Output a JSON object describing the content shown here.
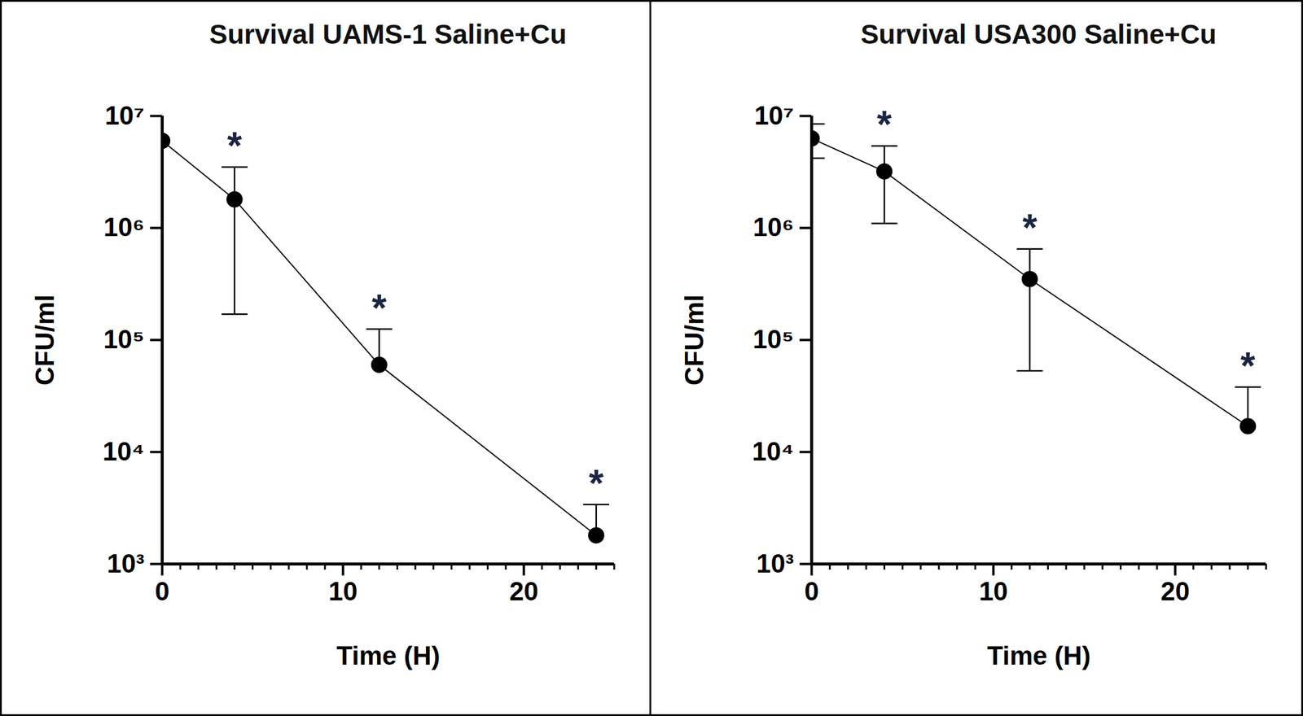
{
  "chart_data": [
    {
      "type": "line",
      "title": "Survival UAMS-1 Saline+Cu",
      "x_label": "Time (H)",
      "y_label": "CFU/ml",
      "x": [
        0,
        4,
        12,
        24
      ],
      "values": [
        6000000,
        1800000,
        60000,
        1800
      ],
      "error_low": [
        null,
        170000,
        null,
        null
      ],
      "error_high": [
        null,
        3500000,
        125000,
        3400
      ],
      "annotations": [
        {
          "x": 4,
          "text": "*"
        },
        {
          "x": 12,
          "text": "*"
        },
        {
          "x": 24,
          "text": "*"
        }
      ],
      "xlim": [
        0,
        25
      ],
      "xticks": [
        0,
        10,
        20
      ],
      "ylim": [
        1000,
        10000000
      ],
      "yticks": [
        {
          "value": 1000,
          "label": "10³"
        },
        {
          "value": 10000,
          "label": "10⁴"
        },
        {
          "value": 100000,
          "label": "10⁵"
        },
        {
          "value": 1000000,
          "label": "10⁶"
        },
        {
          "value": 10000000,
          "label": "10⁷"
        }
      ],
      "log": "y",
      "color": "#000000",
      "marker": "circle",
      "line_style": "solid"
    },
    {
      "type": "line",
      "title": "Survival USA300 Saline+Cu",
      "x_label": "Time (H)",
      "y_label": "CFU/ml",
      "x": [
        0,
        4,
        12,
        24
      ],
      "values": [
        6300000,
        3200000,
        350000,
        17000
      ],
      "error_low": [
        4200000,
        1100000,
        53000,
        null
      ],
      "error_high": [
        8500000,
        5400000,
        650000,
        38000
      ],
      "annotations": [
        {
          "x": 4,
          "text": "*"
        },
        {
          "x": 12,
          "text": "*"
        },
        {
          "x": 24,
          "text": "*"
        }
      ],
      "xlim": [
        0,
        25
      ],
      "xticks": [
        0,
        10,
        20
      ],
      "ylim": [
        1000,
        10000000
      ],
      "yticks": [
        {
          "value": 1000,
          "label": "10³"
        },
        {
          "value": 10000,
          "label": "10⁴"
        },
        {
          "value": 100000,
          "label": "10⁵"
        },
        {
          "value": 1000000,
          "label": "10⁶"
        },
        {
          "value": 10000000,
          "label": "10⁷"
        }
      ],
      "log": "y",
      "color": "#000000",
      "marker": "circle",
      "line_style": "solid"
    }
  ]
}
